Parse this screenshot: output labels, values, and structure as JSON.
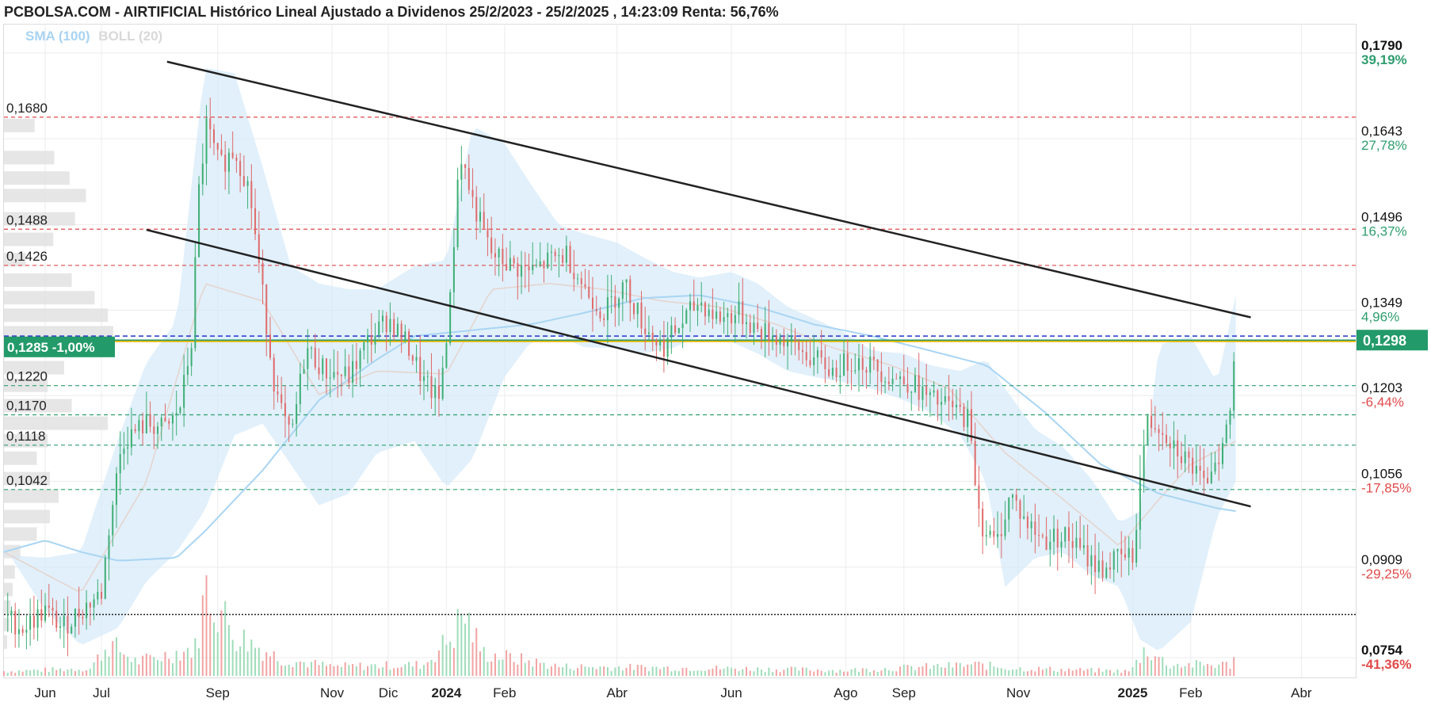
{
  "header": {
    "title": "PCBOLSA.COM - AIRTIFICIAL Histórico Lineal Ajustado a Dividenos 25/2/2023 - 25/2/2025 , 14:23:09 Renta: 56,76%",
    "sma_label": "SMA (100)",
    "boll_label": "BOLL (20)"
  },
  "chart_data": {
    "type": "candlestick",
    "title": "PCBOLSA.COM - AIRTIFICIAL Histórico Lineal Ajustado a Dividenos 25/2/2023 - 25/2/2025 , 14:23:09 Renta: 56,76%",
    "x_range": [
      "2023-05-10",
      "2025-04-30"
    ],
    "ylim": [
      0.072,
      0.184
    ],
    "grid": true,
    "x_ticks": [
      {
        "date": "2023-06-01",
        "label": "Jun",
        "bold": false
      },
      {
        "date": "2023-07-01",
        "label": "Jul",
        "bold": false
      },
      {
        "date": "2023-09-01",
        "label": "Sep",
        "bold": false
      },
      {
        "date": "2023-11-01",
        "label": "Nov",
        "bold": false
      },
      {
        "date": "2023-12-01",
        "label": "Dic",
        "bold": false
      },
      {
        "date": "2024-01-01",
        "label": "2024",
        "bold": true
      },
      {
        "date": "2024-02-01",
        "label": "Feb",
        "bold": false
      },
      {
        "date": "2024-04-01",
        "label": "Abr",
        "bold": false
      },
      {
        "date": "2024-06-01",
        "label": "Jun",
        "bold": false
      },
      {
        "date": "2024-08-01",
        "label": "Ago",
        "bold": false
      },
      {
        "date": "2024-09-01",
        "label": "Sep",
        "bold": false
      },
      {
        "date": "2024-11-01",
        "label": "Nov",
        "bold": false
      },
      {
        "date": "2025-01-01",
        "label": "2025",
        "bold": true
      },
      {
        "date": "2025-02-01",
        "label": "Feb",
        "bold": false
      },
      {
        "date": "2025-04-01",
        "label": "Abr",
        "bold": false
      }
    ],
    "right_axis": [
      {
        "price": 0.179,
        "label": "0,1790",
        "pct": "39,19%",
        "bold": true,
        "pct_color": "#2e9e6e"
      },
      {
        "price": 0.1643,
        "label": "0,1643",
        "pct": "27,78%",
        "bold": false,
        "pct_color": "#2e9e6e"
      },
      {
        "price": 0.1496,
        "label": "0,1496",
        "pct": "16,37%",
        "bold": false,
        "pct_color": "#2e9e6e"
      },
      {
        "price": 0.1349,
        "label": "0,1349",
        "pct": "4,96%",
        "bold": false,
        "pct_color": "#2e9e6e"
      },
      {
        "price": 0.1203,
        "label": "0,1203",
        "pct": "-6,44%",
        "bold": false,
        "pct_color": "#e24a4a"
      },
      {
        "price": 0.1056,
        "label": "0,1056",
        "pct": "-17,85%",
        "bold": false,
        "pct_color": "#e24a4a"
      },
      {
        "price": 0.0909,
        "label": "0,0909",
        "pct": "-29,25%",
        "bold": false,
        "pct_color": "#e24a4a"
      },
      {
        "price": 0.0754,
        "label": "0,0754",
        "pct": "-41,36%",
        "bold": true,
        "pct_color": "#e24a4a"
      }
    ],
    "current_price": {
      "price": 0.1298,
      "label": "0,1298",
      "color": "#239a69"
    },
    "last_close_tag": {
      "price": 0.1285,
      "label": "0,1285",
      "change": "-1,00%",
      "color": "#239a69"
    },
    "support_resistance": [
      {
        "price": 0.168,
        "label": "0,1680",
        "color": "#e24a4a"
      },
      {
        "price": 0.1488,
        "label": "0,1488",
        "color": "#e24a4a"
      },
      {
        "price": 0.1426,
        "label": "0,1426",
        "color": "#e24a4a"
      },
      {
        "price": 0.122,
        "label": "0,1220",
        "color": "#2e9e6e"
      },
      {
        "price": 0.117,
        "label": "0,1170",
        "color": "#2e9e6e"
      },
      {
        "price": 0.1118,
        "label": "0,1118",
        "color": "#2e9e6e"
      },
      {
        "price": 0.1042,
        "label": "0,1042",
        "color": "#2e9e6e"
      }
    ],
    "reference_lines": [
      {
        "price": 0.1305,
        "color": "#2233cc",
        "style": "dashed"
      },
      {
        "price": 0.1296,
        "color": "#e8b400",
        "style": "solid"
      },
      {
        "price": 0.0828,
        "color": "#222222",
        "style": "dotted"
      }
    ],
    "trendlines": [
      {
        "from": {
          "date": "2023-08-05",
          "price": 0.1775
        },
        "to": {
          "date": "2025-03-05",
          "price": 0.1337
        }
      },
      {
        "from": {
          "date": "2023-07-25",
          "price": 0.1487
        },
        "to": {
          "date": "2025-03-05",
          "price": 0.1013
        }
      }
    ],
    "sma_100": [
      [
        "2023-05-10",
        0.0935
      ],
      [
        "2023-06-01",
        0.0955
      ],
      [
        "2023-06-20",
        0.0935
      ],
      [
        "2023-07-10",
        0.092
      ],
      [
        "2023-08-10",
        0.0925
      ],
      [
        "2023-08-25",
        0.097
      ],
      [
        "2023-09-25",
        0.1075
      ],
      [
        "2023-10-25",
        0.1195
      ],
      [
        "2023-11-25",
        0.1265
      ],
      [
        "2023-12-15",
        0.1305
      ],
      [
        "2024-01-15",
        0.1315
      ],
      [
        "2024-02-15",
        0.1325
      ],
      [
        "2024-03-15",
        0.1345
      ],
      [
        "2024-04-15",
        0.137
      ],
      [
        "2024-05-15",
        0.1375
      ],
      [
        "2024-06-15",
        0.1355
      ],
      [
        "2024-07-15",
        0.1325
      ],
      [
        "2024-08-15",
        0.1305
      ],
      [
        "2024-09-15",
        0.128
      ],
      [
        "2024-10-15",
        0.1255
      ],
      [
        "2024-11-15",
        0.1175
      ],
      [
        "2024-12-15",
        0.1085
      ],
      [
        "2025-01-15",
        0.1035
      ],
      [
        "2025-02-15",
        0.101
      ],
      [
        "2025-02-25",
        0.1005
      ]
    ],
    "bollinger_upper": [
      [
        "2023-05-10",
        0.093
      ],
      [
        "2023-06-01",
        0.0925
      ],
      [
        "2023-06-20",
        0.0935
      ],
      [
        "2023-07-10",
        0.113
      ],
      [
        "2023-07-25",
        0.126
      ],
      [
        "2023-08-10",
        0.133
      ],
      [
        "2023-08-25",
        0.1765
      ],
      [
        "2023-09-10",
        0.1755
      ],
      [
        "2023-09-25",
        0.1595
      ],
      [
        "2023-10-10",
        0.1425
      ],
      [
        "2023-10-25",
        0.1395
      ],
      [
        "2023-11-10",
        0.1385
      ],
      [
        "2023-11-25",
        0.1385
      ],
      [
        "2023-12-15",
        0.1425
      ],
      [
        "2024-01-01",
        0.1435
      ],
      [
        "2024-01-15",
        0.1665
      ],
      [
        "2024-02-01",
        0.1635
      ],
      [
        "2024-02-15",
        0.1565
      ],
      [
        "2024-03-01",
        0.1495
      ],
      [
        "2024-03-15",
        0.148
      ],
      [
        "2024-04-01",
        0.1465
      ],
      [
        "2024-04-15",
        0.144
      ],
      [
        "2024-05-01",
        0.1415
      ],
      [
        "2024-05-15",
        0.1405
      ],
      [
        "2024-06-01",
        0.1415
      ],
      [
        "2024-06-15",
        0.1395
      ],
      [
        "2024-07-01",
        0.1355
      ],
      [
        "2024-07-15",
        0.1335
      ],
      [
        "2024-08-01",
        0.131
      ],
      [
        "2024-08-15",
        0.128
      ],
      [
        "2024-09-01",
        0.1275
      ],
      [
        "2024-09-15",
        0.1255
      ],
      [
        "2024-10-01",
        0.1245
      ],
      [
        "2024-10-15",
        0.1265
      ],
      [
        "2024-10-25",
        0.1215
      ],
      [
        "2024-11-10",
        0.1145
      ],
      [
        "2024-11-25",
        0.1115
      ],
      [
        "2024-12-10",
        0.106
      ],
      [
        "2024-12-25",
        0.0985
      ],
      [
        "2025-01-05",
        0.1005
      ],
      [
        "2025-01-15",
        0.129
      ],
      [
        "2025-02-01",
        0.1305
      ],
      [
        "2025-02-15",
        0.1225
      ],
      [
        "2025-02-25",
        0.1375
      ]
    ],
    "bollinger_lower": [
      [
        "2023-05-10",
        0.0945
      ],
      [
        "2023-06-01",
        0.0835
      ],
      [
        "2023-06-20",
        0.0775
      ],
      [
        "2023-07-10",
        0.0805
      ],
      [
        "2023-07-25",
        0.0885
      ],
      [
        "2023-08-10",
        0.0935
      ],
      [
        "2023-08-25",
        0.1005
      ],
      [
        "2023-09-10",
        0.1135
      ],
      [
        "2023-09-25",
        0.1155
      ],
      [
        "2023-10-10",
        0.1085
      ],
      [
        "2023-10-25",
        0.1015
      ],
      [
        "2023-11-10",
        0.1035
      ],
      [
        "2023-11-25",
        0.1105
      ],
      [
        "2023-12-15",
        0.1125
      ],
      [
        "2024-01-01",
        0.1045
      ],
      [
        "2024-01-15",
        0.1095
      ],
      [
        "2024-02-01",
        0.1235
      ],
      [
        "2024-02-15",
        0.1295
      ],
      [
        "2024-03-01",
        0.1305
      ],
      [
        "2024-03-15",
        0.1285
      ],
      [
        "2024-04-01",
        0.1285
      ],
      [
        "2024-04-15",
        0.1275
      ],
      [
        "2024-05-01",
        0.1285
      ],
      [
        "2024-05-15",
        0.1305
      ],
      [
        "2024-06-01",
        0.1295
      ],
      [
        "2024-06-15",
        0.1275
      ],
      [
        "2024-07-01",
        0.1245
      ],
      [
        "2024-07-15",
        0.1235
      ],
      [
        "2024-08-01",
        0.1225
      ],
      [
        "2024-08-15",
        0.1215
      ],
      [
        "2024-09-01",
        0.1195
      ],
      [
        "2024-09-15",
        0.1175
      ],
      [
        "2024-10-01",
        0.1135
      ],
      [
        "2024-10-15",
        0.1055
      ],
      [
        "2024-10-25",
        0.0875
      ],
      [
        "2024-11-10",
        0.0925
      ],
      [
        "2024-11-25",
        0.0935
      ],
      [
        "2024-12-10",
        0.0895
      ],
      [
        "2024-12-25",
        0.0875
      ],
      [
        "2025-01-05",
        0.0785
      ],
      [
        "2025-01-15",
        0.0765
      ],
      [
        "2025-02-01",
        0.0815
      ],
      [
        "2025-02-15",
        0.0995
      ],
      [
        "2025-02-25",
        0.1055
      ]
    ],
    "bollinger_mid": [
      [
        "2023-05-10",
        0.0935
      ],
      [
        "2023-06-20",
        0.0865
      ],
      [
        "2023-07-25",
        0.1055
      ],
      [
        "2023-08-25",
        0.1395
      ],
      [
        "2023-09-25",
        0.1365
      ],
      [
        "2023-10-25",
        0.1205
      ],
      [
        "2023-11-25",
        0.1245
      ],
      [
        "2024-01-01",
        0.124
      ],
      [
        "2024-01-25",
        0.1385
      ],
      [
        "2024-02-25",
        0.1395
      ],
      [
        "2024-03-25",
        0.1385
      ],
      [
        "2024-04-25",
        0.1365
      ],
      [
        "2024-05-25",
        0.1355
      ],
      [
        "2024-06-25",
        0.1325
      ],
      [
        "2024-07-25",
        0.1285
      ],
      [
        "2024-08-25",
        0.1255
      ],
      [
        "2024-09-25",
        0.1215
      ],
      [
        "2024-10-25",
        0.1105
      ],
      [
        "2024-11-25",
        0.1025
      ],
      [
        "2024-12-25",
        0.0945
      ],
      [
        "2025-01-15",
        0.1025
      ],
      [
        "2025-02-01",
        0.1085
      ],
      [
        "2025-02-25",
        0.1125
      ]
    ],
    "price_path": [
      [
        "2023-05-10",
        0.0825
      ],
      [
        "2023-05-20",
        0.0805
      ],
      [
        "2023-06-01",
        0.0835
      ],
      [
        "2023-06-10",
        0.0805
      ],
      [
        "2023-06-20",
        0.0835
      ],
      [
        "2023-07-01",
        0.0865
      ],
      [
        "2023-07-05",
        0.0975
      ],
      [
        "2023-07-12",
        0.1125
      ],
      [
        "2023-07-25",
        0.1155
      ],
      [
        "2023-08-05",
        0.1145
      ],
      [
        "2023-08-12",
        0.1185
      ],
      [
        "2023-08-18",
        0.1295
      ],
      [
        "2023-08-22",
        0.1555
      ],
      [
        "2023-08-26",
        0.1665
      ],
      [
        "2023-09-02",
        0.1595
      ],
      [
        "2023-09-10",
        0.1625
      ],
      [
        "2023-09-18",
        0.1555
      ],
      [
        "2023-09-25",
        0.1375
      ],
      [
        "2023-10-02",
        0.1205
      ],
      [
        "2023-10-10",
        0.1125
      ],
      [
        "2023-10-18",
        0.1285
      ],
      [
        "2023-10-28",
        0.1245
      ],
      [
        "2023-11-10",
        0.1235
      ],
      [
        "2023-11-20",
        0.1295
      ],
      [
        "2023-12-01",
        0.1335
      ],
      [
        "2023-12-12",
        0.1285
      ],
      [
        "2023-12-20",
        0.1225
      ],
      [
        "2023-12-28",
        0.1195
      ],
      [
        "2024-01-03",
        0.1365
      ],
      [
        "2024-01-08",
        0.1625
      ],
      [
        "2024-01-15",
        0.1535
      ],
      [
        "2024-01-25",
        0.1445
      ],
      [
        "2024-02-05",
        0.1425
      ],
      [
        "2024-02-15",
        0.1415
      ],
      [
        "2024-02-25",
        0.1435
      ],
      [
        "2024-03-05",
        0.1445
      ],
      [
        "2024-03-15",
        0.1385
      ],
      [
        "2024-03-25",
        0.1345
      ],
      [
        "2024-04-05",
        0.1395
      ],
      [
        "2024-04-15",
        0.1325
      ],
      [
        "2024-04-25",
        0.1285
      ],
      [
        "2024-05-05",
        0.1325
      ],
      [
        "2024-05-15",
        0.1365
      ],
      [
        "2024-05-25",
        0.1335
      ],
      [
        "2024-06-05",
        0.1345
      ],
      [
        "2024-06-15",
        0.1315
      ],
      [
        "2024-06-25",
        0.1305
      ],
      [
        "2024-07-05",
        0.1285
      ],
      [
        "2024-07-15",
        0.1265
      ],
      [
        "2024-07-25",
        0.1245
      ],
      [
        "2024-08-05",
        0.1265
      ],
      [
        "2024-08-15",
        0.1255
      ],
      [
        "2024-08-25",
        0.1235
      ],
      [
        "2024-09-05",
        0.1225
      ],
      [
        "2024-09-15",
        0.1195
      ],
      [
        "2024-09-25",
        0.1185
      ],
      [
        "2024-10-05",
        0.1165
      ],
      [
        "2024-10-12",
        0.0985
      ],
      [
        "2024-10-20",
        0.0945
      ],
      [
        "2024-10-28",
        0.1035
      ],
      [
        "2024-11-05",
        0.0985
      ],
      [
        "2024-11-15",
        0.0955
      ],
      [
        "2024-11-25",
        0.0965
      ],
      [
        "2024-12-05",
        0.0935
      ],
      [
        "2024-12-15",
        0.0905
      ],
      [
        "2024-12-25",
        0.0925
      ],
      [
        "2025-01-01",
        0.0925
      ],
      [
        "2025-01-08",
        0.1155
      ],
      [
        "2025-01-15",
        0.1155
      ],
      [
        "2025-01-22",
        0.1125
      ],
      [
        "2025-02-01",
        0.1085
      ],
      [
        "2025-02-08",
        0.1045
      ],
      [
        "2025-02-12",
        0.1085
      ],
      [
        "2025-02-18",
        0.1115
      ],
      [
        "2025-02-22",
        0.1175
      ],
      [
        "2025-02-25",
        0.1298
      ]
    ],
    "volume_path": [
      [
        "2023-05-10",
        0.05
      ],
      [
        "2023-06-25",
        0.08
      ],
      [
        "2023-07-05",
        0.35
      ],
      [
        "2023-07-20",
        0.15
      ],
      [
        "2023-08-20",
        0.3
      ],
      [
        "2023-08-26",
        0.95
      ],
      [
        "2023-09-10",
        0.45
      ],
      [
        "2023-10-05",
        0.18
      ],
      [
        "2023-11-01",
        0.1
      ],
      [
        "2023-12-20",
        0.12
      ],
      [
        "2024-01-05",
        0.45
      ],
      [
        "2024-01-10",
        0.7
      ],
      [
        "2024-01-20",
        0.25
      ],
      [
        "2024-03-01",
        0.1
      ],
      [
        "2024-06-01",
        0.08
      ],
      [
        "2024-08-01",
        0.06
      ],
      [
        "2024-10-10",
        0.12
      ],
      [
        "2024-11-01",
        0.08
      ],
      [
        "2024-12-31",
        0.05
      ],
      [
        "2025-01-08",
        0.3
      ],
      [
        "2025-01-20",
        0.12
      ],
      [
        "2025-02-22",
        0.12
      ],
      [
        "2025-02-25",
        0.32
      ]
    ],
    "volume_profile": [
      [
        0.1665,
        0.28
      ],
      [
        0.161,
        0.46
      ],
      [
        0.1575,
        0.6
      ],
      [
        0.1545,
        0.75
      ],
      [
        0.1505,
        0.65
      ],
      [
        0.147,
        0.45
      ],
      [
        0.1435,
        0.2
      ],
      [
        0.14,
        0.62
      ],
      [
        0.137,
        0.83
      ],
      [
        0.134,
        0.95
      ],
      [
        0.131,
        1.0
      ],
      [
        0.128,
        0.7
      ],
      [
        0.125,
        0.55
      ],
      [
        0.122,
        0.4
      ],
      [
        0.1185,
        0.62
      ],
      [
        0.1155,
        0.95
      ],
      [
        0.1125,
        0.4
      ],
      [
        0.1095,
        0.3
      ],
      [
        0.106,
        0.42
      ],
      [
        0.103,
        0.5
      ],
      [
        0.0995,
        0.42
      ],
      [
        0.0965,
        0.3
      ],
      [
        0.0935,
        0.15
      ],
      [
        0.09,
        0.1
      ],
      [
        0.087,
        0.08
      ],
      [
        0.084,
        0.06
      ],
      [
        0.081,
        0.05
      ],
      [
        0.078,
        0.03
      ]
    ]
  }
}
